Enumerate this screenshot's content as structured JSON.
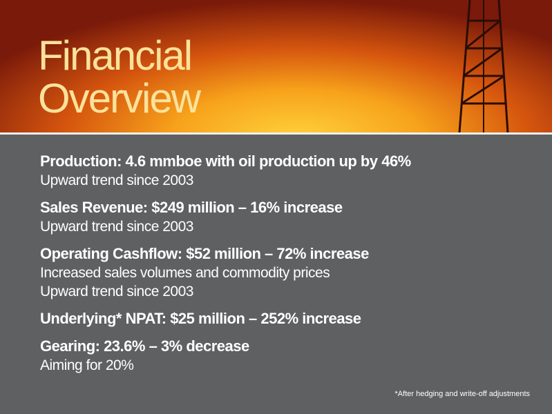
{
  "header": {
    "title_lines": [
      "Financial",
      "Overview"
    ]
  },
  "items": [
    {
      "heading": "Production: 4.6 mmboe with oil production up by 46%",
      "lines": [
        "Upward trend since 2003"
      ]
    },
    {
      "heading": "Sales Revenue: $249 million – 16% increase",
      "lines": [
        "Upward trend since 2003"
      ]
    },
    {
      "heading": "Operating Cashflow: $52 million – 72% increase",
      "lines": [
        "Increased sales volumes and commodity prices",
        "Upward trend since 2003"
      ]
    },
    {
      "heading": "Underlying* NPAT: $25 million – 252% increase",
      "lines": []
    },
    {
      "heading": "Gearing: 23.6% – 3% decrease",
      "lines": [
        "Aiming for 20%"
      ]
    }
  ],
  "footnote": "*After hedging and write-off adjustments"
}
